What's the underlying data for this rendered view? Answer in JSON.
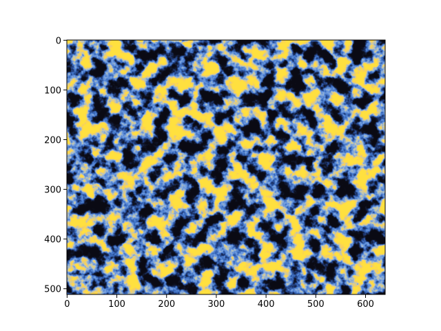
{
  "chart_data": {
    "type": "image",
    "xlim": [
      -0.5,
      639.5
    ],
    "ylim": [
      511.5,
      -0.5
    ],
    "xticks": [
      0,
      100,
      200,
      300,
      400,
      500,
      600
    ],
    "yticks": [
      0,
      100,
      200,
      300,
      400,
      500
    ]
  }
}
